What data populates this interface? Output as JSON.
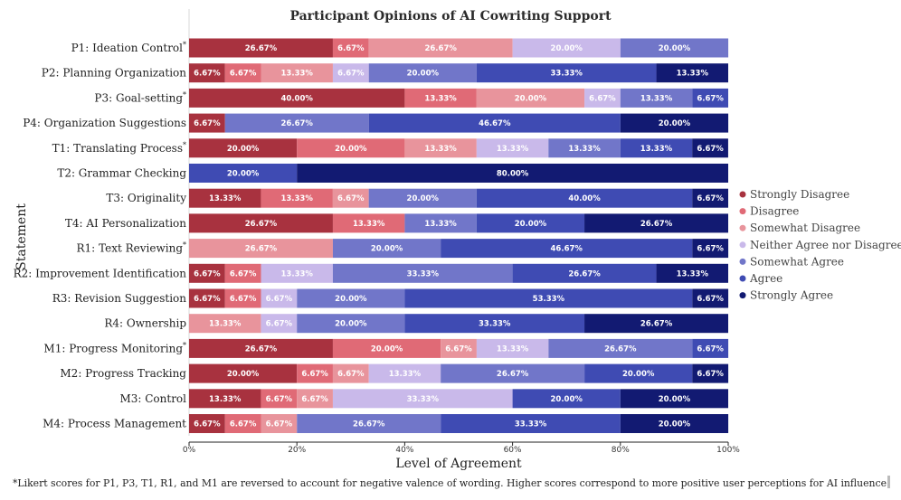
{
  "chart_data": {
    "type": "stacked-bar",
    "title": "Participant Opinions of AI Cowriting Support",
    "xlabel": "Level of Agreement",
    "ylabel": "Statement",
    "xlim": [
      0,
      100
    ],
    "xticks": [
      "0%",
      "20%",
      "40%",
      "60%",
      "80%",
      "100%"
    ],
    "categories": [
      "P1: Ideation Control*",
      "P2: Planning Organization",
      "P3: Goal-setting*",
      "P4: Organization Suggestions",
      "T1: Translating Process*",
      "T2: Grammar Checking",
      "T3: Originality",
      "T4: AI Personalization",
      "R1: Text Reviewing*",
      "R2: Improvement Identification",
      "R3: Revision Suggestion",
      "R4: Ownership",
      "M1: Progress Monitoring*",
      "M2: Progress Tracking",
      "M3: Control",
      "M4: Process Management"
    ],
    "series": [
      {
        "name": "Strongly Disagree",
        "color": "#a8323f",
        "values": [
          26.67,
          6.67,
          40.0,
          6.67,
          20.0,
          0,
          13.33,
          26.67,
          0,
          6.67,
          6.67,
          0,
          26.67,
          20.0,
          13.33,
          6.67
        ]
      },
      {
        "name": "Disagree",
        "color": "#e06a76",
        "values": [
          6.67,
          6.67,
          13.33,
          0,
          20.0,
          0,
          13.33,
          13.33,
          0,
          6.67,
          6.67,
          0,
          20.0,
          6.67,
          6.67,
          6.67
        ]
      },
      {
        "name": "Somewhat Disagree",
        "color": "#e8949c",
        "values": [
          26.67,
          13.33,
          20.0,
          0,
          13.33,
          0,
          6.67,
          0,
          26.67,
          0,
          0,
          13.33,
          6.67,
          6.67,
          6.67,
          6.67
        ]
      },
      {
        "name": "Neither Agree nor Disagree",
        "color": "#c9b9ea",
        "values": [
          20.0,
          6.67,
          6.67,
          0,
          13.33,
          0,
          0,
          0,
          0,
          13.33,
          6.67,
          6.67,
          13.33,
          13.33,
          33.33,
          0
        ]
      },
      {
        "name": "Somewhat Agree",
        "color": "#7176c9",
        "values": [
          20.0,
          20.0,
          13.33,
          26.67,
          13.33,
          0,
          20.0,
          13.33,
          20.0,
          33.33,
          20.0,
          20.0,
          26.67,
          26.67,
          0,
          26.67
        ]
      },
      {
        "name": "Agree",
        "color": "#3f4bb3",
        "values": [
          0,
          33.33,
          6.67,
          46.67,
          13.33,
          20.0,
          40.0,
          20.0,
          46.67,
          26.67,
          53.33,
          33.33,
          6.67,
          20.0,
          20.0,
          33.33
        ]
      },
      {
        "name": "Strongly Agree",
        "color": "#121a72",
        "values": [
          0,
          13.33,
          0,
          20.0,
          6.67,
          80.0,
          6.67,
          26.67,
          6.67,
          13.33,
          6.67,
          26.67,
          0,
          6.67,
          20.0,
          20.0
        ]
      }
    ],
    "legend_position": "right",
    "footnote": "*Likert scores for P1, P3, T1, R1, and M1 are reversed to account for negative valence of wording. Higher scores correspond to more positive user perceptions for AI influence"
  }
}
